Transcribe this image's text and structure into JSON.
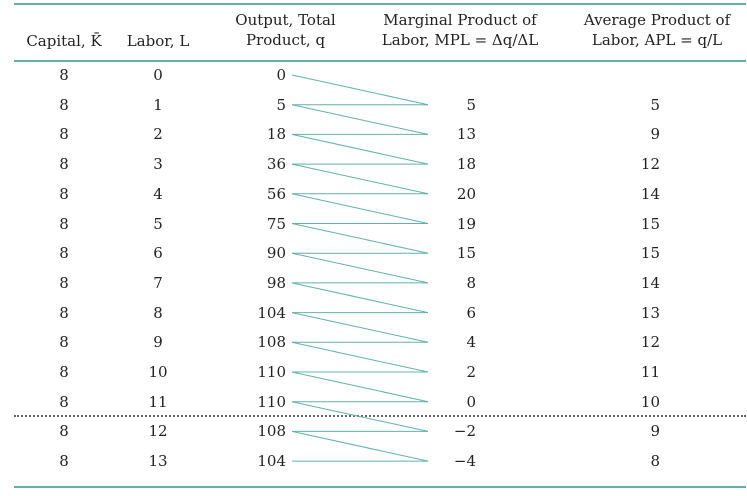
{
  "headers": {
    "capital": "Capital, K̄",
    "labor": "Labor, L",
    "output_line1": "Output, Total",
    "output_line2": "Product, q",
    "mp_line1": "Marginal Product of",
    "mp_line2": "Labor, MPL = Δq/ΔL",
    "ap_line1": "Average Product of",
    "ap_line2": "Labor, APL = q/L"
  },
  "rows": [
    {
      "capital": "8",
      "labor": "0",
      "output": "0",
      "mp": "",
      "ap": ""
    },
    {
      "capital": "8",
      "labor": "1",
      "output": "5",
      "mp": "5",
      "ap": "5"
    },
    {
      "capital": "8",
      "labor": "2",
      "output": "18",
      "mp": "13",
      "ap": "9"
    },
    {
      "capital": "8",
      "labor": "3",
      "output": "36",
      "mp": "18",
      "ap": "12"
    },
    {
      "capital": "8",
      "labor": "4",
      "output": "56",
      "mp": "20",
      "ap": "14"
    },
    {
      "capital": "8",
      "labor": "5",
      "output": "75",
      "mp": "19",
      "ap": "15"
    },
    {
      "capital": "8",
      "labor": "6",
      "output": "90",
      "mp": "15",
      "ap": "15"
    },
    {
      "capital": "8",
      "labor": "7",
      "output": "98",
      "mp": "8",
      "ap": "14"
    },
    {
      "capital": "8",
      "labor": "8",
      "output": "104",
      "mp": "6",
      "ap": "13"
    },
    {
      "capital": "8",
      "labor": "9",
      "output": "108",
      "mp": "4",
      "ap": "12"
    },
    {
      "capital": "8",
      "labor": "10",
      "output": "110",
      "mp": "2",
      "ap": "11"
    },
    {
      "capital": "8",
      "labor": "11",
      "output": "110",
      "mp": "0",
      "ap": "10"
    },
    {
      "capital": "8",
      "labor": "12",
      "output": "108",
      "mp": "−2",
      "ap": "9"
    },
    {
      "capital": "8",
      "labor": "13",
      "output": "104",
      "mp": "−4",
      "ap": "8"
    }
  ],
  "colors": {
    "rule": "#63b0ab",
    "connector": "#63b0ab",
    "dotted_rule": "#666666"
  }
}
